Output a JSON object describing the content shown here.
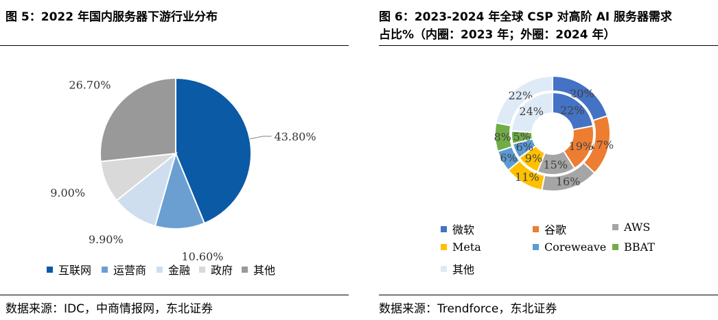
{
  "left": {
    "title": "图 5：2022 年国内服务器下游行业分布",
    "source": "数据来源：IDC，中商情报网，东北证券"
  },
  "right": {
    "title_line1": "图 6：2023-2024 年全球 CSP 对高阶 AI 服务器需求",
    "title_line2": "占比%（内圈：2023 年；外圈：2024 年）",
    "source": "数据来源：Trendforce，东北证券"
  },
  "chart_data": [
    {
      "type": "pie",
      "title": "图 5：2022 年国内服务器下游行业分布",
      "categories": [
        "互联网",
        "运营商",
        "金融",
        "政府",
        "其他"
      ],
      "values": [
        43.8,
        10.6,
        9.9,
        9.0,
        26.7
      ],
      "labels": [
        "43.80%",
        "10.60%",
        "9.90%",
        "9.00%",
        "26.70%"
      ],
      "colors": [
        "#0b5aa6",
        "#6b9fd2",
        "#cfdeee",
        "#d9d9d9",
        "#999999"
      ],
      "legend_position": "bottom"
    },
    {
      "type": "pie",
      "subtype": "donut",
      "title": "图 6：2023-2024 年全球 CSP 对高阶 AI 服务器需求占比%（内圈：2023 年；外圈：2024 年）",
      "categories": [
        "微软",
        "谷歌",
        "AWS",
        "Meta",
        "Coreweave",
        "BBAT",
        "其他"
      ],
      "series": [
        {
          "name": "2024 年",
          "ring": "outer",
          "values": [
            20,
            17,
            16,
            11,
            6,
            8,
            22
          ],
          "labels": [
            "20%",
            "17%",
            "16%",
            "11%",
            "6%",
            "8%",
            "22%"
          ]
        },
        {
          "name": "2023 年",
          "ring": "inner",
          "values": [
            22,
            19,
            15,
            9,
            6,
            5,
            24
          ],
          "labels": [
            "22%",
            "19%",
            "15%",
            "9%",
            "6%",
            "5%",
            "24%"
          ]
        }
      ],
      "colors": [
        "#4472c4",
        "#ed7d31",
        "#a5a5a5",
        "#ffc000",
        "#5b9bd5",
        "#70ad47",
        "#deebf7"
      ],
      "legend_position": "bottom"
    }
  ]
}
